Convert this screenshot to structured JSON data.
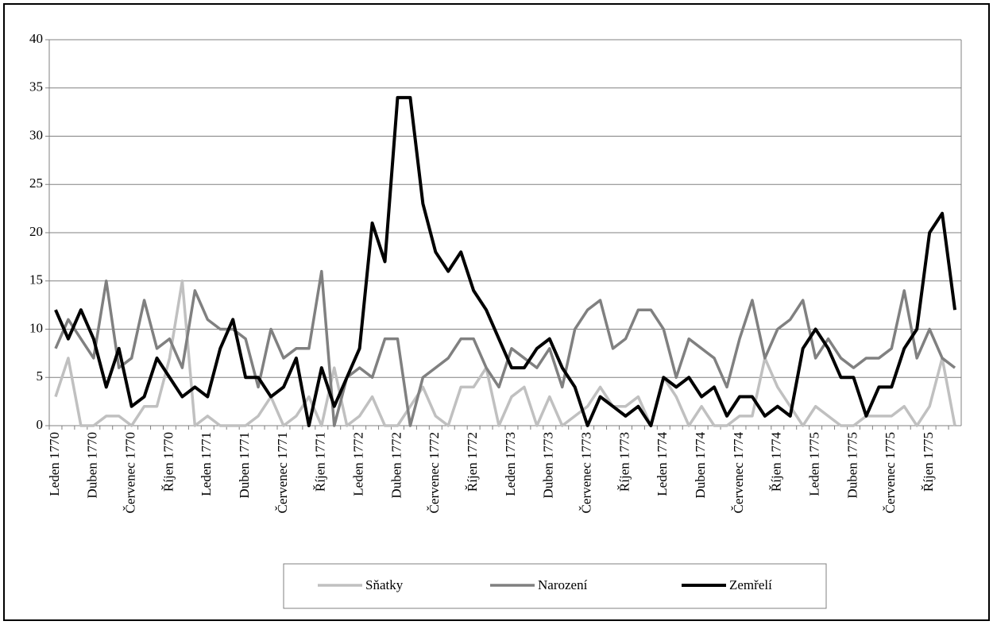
{
  "chart_data": {
    "type": "line",
    "categories": [
      "Leden 1770",
      null,
      null,
      "Duben 1770",
      null,
      null,
      "Červenec 1770",
      null,
      null,
      "Říjen 1770",
      null,
      null,
      "Leden 1771",
      null,
      null,
      "Duben 1771",
      null,
      null,
      "Červenec 1771",
      null,
      null,
      "Říjen 1771",
      null,
      null,
      "Leden 1772",
      null,
      null,
      "Duben 1772",
      null,
      null,
      "Červenec 1772",
      null,
      null,
      "Říjen 1772",
      null,
      null,
      "Leden 1773",
      null,
      null,
      "Duben 1773",
      null,
      null,
      "Červenec 1773",
      null,
      null,
      "Říjen 1773",
      null,
      null,
      "Leden 1774",
      null,
      null,
      "Duben 1774",
      null,
      null,
      "Červenec 1774",
      null,
      null,
      "Říjen 1774",
      null,
      null,
      "Leden 1775",
      null,
      null,
      "Duben 1775",
      null,
      null,
      "Červenec 1775",
      null,
      null,
      "Říjen 1775",
      null,
      null
    ],
    "series": [
      {
        "name": "Sňatky",
        "color": "#c0c0c0",
        "values": [
          3,
          7,
          0,
          0,
          1,
          1,
          0,
          2,
          2,
          7,
          15,
          0,
          1,
          0,
          0,
          0,
          1,
          3,
          0,
          1,
          3,
          0,
          6,
          0,
          1,
          3,
          0,
          0,
          2,
          4,
          1,
          0,
          4,
          4,
          6,
          0,
          3,
          4,
          0,
          3,
          0,
          1,
          2,
          4,
          2,
          2,
          3,
          0,
          5,
          3,
          0,
          2,
          0,
          0,
          1,
          1,
          7,
          4,
          2,
          0,
          2,
          1,
          0,
          0,
          1,
          1,
          1,
          2,
          0,
          2,
          7,
          0
        ]
      },
      {
        "name": "Narození",
        "color": "#808080",
        "values": [
          8,
          11,
          9,
          7,
          15,
          6,
          7,
          13,
          8,
          9,
          6,
          14,
          11,
          10,
          10,
          9,
          4,
          10,
          7,
          8,
          8,
          16,
          0,
          5,
          6,
          5,
          9,
          9,
          0,
          5,
          6,
          7,
          9,
          9,
          6,
          4,
          8,
          7,
          6,
          8,
          4,
          10,
          12,
          13,
          8,
          9,
          12,
          12,
          10,
          5,
          9,
          8,
          7,
          4,
          9,
          13,
          7,
          10,
          11,
          13,
          7,
          9,
          7,
          6,
          7,
          7,
          8,
          14,
          7,
          10,
          7,
          6
        ]
      },
      {
        "name": "Zemřelí",
        "color": "#000000",
        "values": [
          12,
          9,
          12,
          9,
          4,
          8,
          2,
          3,
          7,
          5,
          3,
          4,
          3,
          8,
          11,
          5,
          5,
          3,
          4,
          7,
          0,
          6,
          2,
          5,
          8,
          21,
          17,
          34,
          34,
          23,
          18,
          16,
          18,
          14,
          12,
          9,
          6,
          6,
          8,
          9,
          6,
          4,
          0,
          3,
          2,
          1,
          2,
          0,
          5,
          4,
          5,
          3,
          4,
          1,
          3,
          3,
          1,
          2,
          1,
          8,
          10,
          8,
          5,
          5,
          1,
          4,
          4,
          8,
          10,
          20,
          22,
          12
        ]
      }
    ],
    "ylim": [
      0,
      40
    ],
    "yticks": [
      0,
      5,
      10,
      15,
      20,
      25,
      30,
      35,
      40
    ],
    "grid": true
  }
}
